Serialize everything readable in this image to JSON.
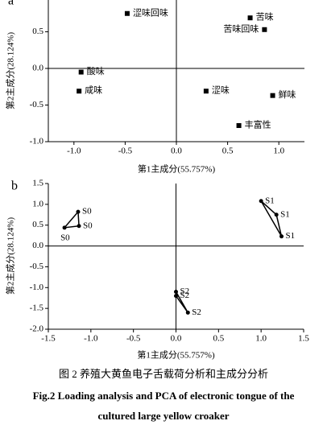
{
  "charts": [
    {
      "type": "scatter",
      "panel": "a",
      "xlabel": "第1主成分(55.757%)",
      "ylabel": "第2主成分(28.124%)",
      "labels": [
        "涩味回味",
        "苦味",
        "苦味回味",
        "酸味",
        "咸味",
        "涩味",
        "鲜味",
        "丰富性"
      ],
      "x": [
        -0.48,
        0.72,
        0.86,
        -0.93,
        -0.95,
        0.29,
        0.94,
        0.61
      ],
      "y": [
        0.75,
        0.69,
        0.53,
        -0.05,
        -0.31,
        -0.31,
        -0.37,
        -0.78
      ],
      "marker": "square",
      "color": "#000000",
      "xlim": [
        -1.25,
        1.25
      ],
      "ylim": [
        -1.0,
        1.0
      ],
      "xticks": [
        {
          "value": -1,
          "label": "-1.0"
        },
        -0.5,
        {
          "value": 0,
          "label": "0.0"
        },
        0.5,
        {
          "value": 1,
          "label": "1.0"
        }
      ],
      "yticks": [
        {
          "value": -1,
          "label": "-1.0"
        },
        -0.5,
        {
          "value": 0,
          "label": "0.0"
        },
        0.5
      ]
    },
    {
      "type": "scatter",
      "panel": "b",
      "xlabel": "第1主成分(55.757%)",
      "ylabel": "第2主成分(28.124%)",
      "series": [
        {
          "name": "S0",
          "x": [
            -1.15,
            -1.14,
            -1.31
          ],
          "y": [
            0.82,
            0.48,
            0.44
          ]
        },
        {
          "name": "S1",
          "x": [
            1.0,
            1.18,
            1.24
          ],
          "y": [
            1.08,
            0.75,
            0.23
          ]
        },
        {
          "name": "S2",
          "x": [
            0.0,
            0.0,
            0.14
          ],
          "y": [
            -1.1,
            -1.2,
            -1.6
          ]
        }
      ],
      "marker": "dot",
      "connect": true,
      "color": "#000000",
      "xlim": [
        -1.5,
        1.5
      ],
      "ylim": [
        -2.0,
        1.5
      ],
      "xticks": [
        {
          "value": -1.5,
          "label": "-1.5"
        },
        {
          "value": -1,
          "label": "-1.0"
        },
        -0.5,
        {
          "value": 0,
          "label": "0.0"
        },
        0.5,
        {
          "value": 1,
          "label": "1.0"
        },
        1.5
      ],
      "yticks": [
        {
          "value": -2,
          "label": "-2.0"
        },
        -1.5,
        {
          "value": -1,
          "label": "-1.0"
        },
        -0.5,
        {
          "value": 0,
          "label": "0.0"
        },
        0.5,
        {
          "value": 1,
          "label": "1.0"
        },
        1.5
      ]
    }
  ],
  "caption": [
    "图 2 养殖大黄鱼电子舌载荷分析和主成分分析",
    "Fig.2 Loading analysis and PCA of electronic tongue of the",
    "cultured large yellow croaker"
  ]
}
